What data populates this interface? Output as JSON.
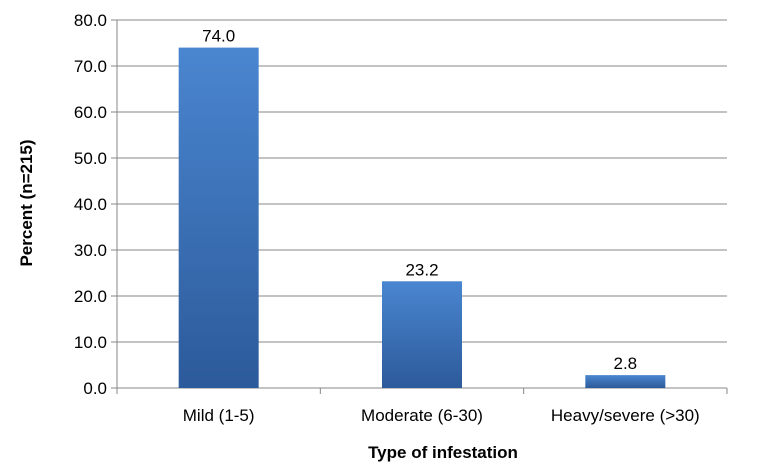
{
  "chart_data": {
    "type": "bar",
    "title": "",
    "xlabel": "Type of infestation",
    "ylabel": "Percent (n=215)",
    "categories": [
      "Mild (1-5)",
      "Moderate (6-30)",
      "Heavy/severe (>30)"
    ],
    "values": [
      74.0,
      23.2,
      2.8
    ],
    "data_labels": [
      "74.0",
      "23.2",
      "2.8"
    ],
    "ylim": [
      0,
      80
    ],
    "yticks": [
      "0.0",
      "10.0",
      "20.0",
      "30.0",
      "40.0",
      "50.0",
      "60.0",
      "70.0",
      "80.0"
    ],
    "grid": true,
    "legend": "none",
    "colors": {
      "bar_top": "#4a86d0",
      "bar_bottom": "#2c5a9a",
      "grid": "#878787",
      "axis": "#878787"
    }
  }
}
